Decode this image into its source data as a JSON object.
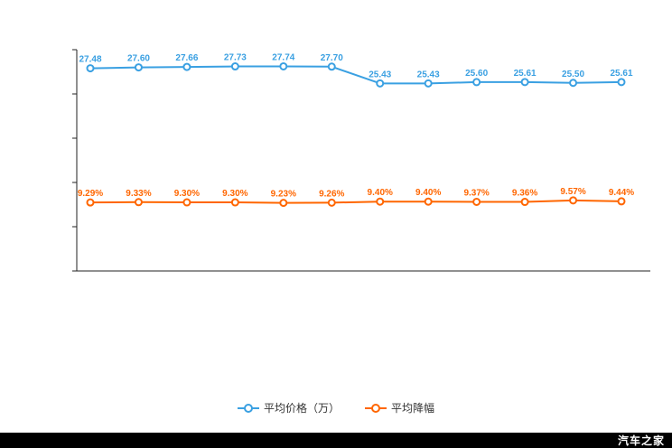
{
  "chart_data": {
    "type": "line",
    "ylim": [
      0,
      30
    ],
    "grid": false,
    "legend_position": "bottom",
    "series": [
      {
        "name": "平均价格（万）",
        "color": "#3aa0e2",
        "label_suffix": "",
        "values": [
          27.48,
          27.6,
          27.66,
          27.73,
          27.74,
          27.7,
          25.43,
          25.43,
          25.6,
          25.61,
          25.5,
          25.61
        ]
      },
      {
        "name": "平均降幅",
        "color": "#ff6600",
        "label_suffix": "%",
        "values": [
          9.29,
          9.33,
          9.3,
          9.3,
          9.23,
          9.26,
          9.4,
          9.4,
          9.37,
          9.36,
          9.57,
          9.44
        ]
      }
    ]
  },
  "legend": {
    "items": [
      {
        "label": "平均价格（万）",
        "color": "#3aa0e2"
      },
      {
        "label": "平均降幅",
        "color": "#ff6600"
      }
    ]
  },
  "axis": {
    "color": "#222222"
  },
  "footer": {
    "watermark": "汽车之家"
  }
}
